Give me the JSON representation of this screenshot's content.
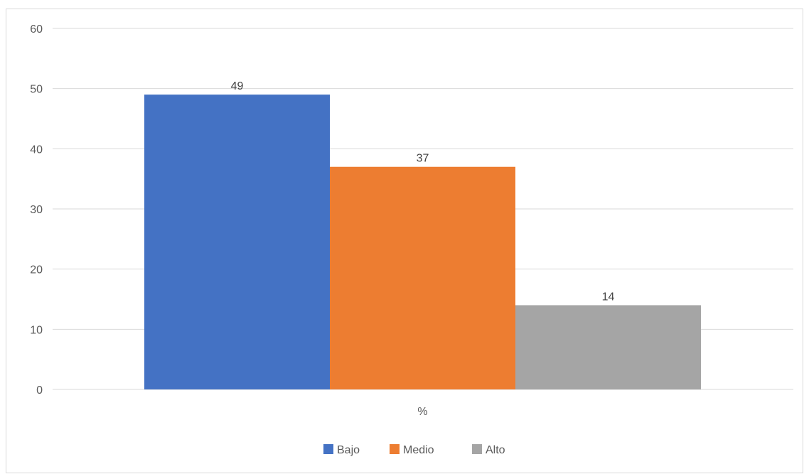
{
  "chart_data": {
    "type": "bar",
    "categories": [
      "%"
    ],
    "series": [
      {
        "name": "Bajo",
        "values": [
          49
        ],
        "color": "#4472c4"
      },
      {
        "name": "Medio",
        "values": [
          37
        ],
        "color": "#ed7d31"
      },
      {
        "name": "Alto",
        "values": [
          14
        ],
        "color": "#a5a5a5"
      }
    ],
    "ylim": [
      0,
      60
    ],
    "yticks": [
      0,
      10,
      20,
      30,
      40,
      50,
      60
    ],
    "grid": true,
    "legend": "bottom-center",
    "show_data_labels": true
  }
}
